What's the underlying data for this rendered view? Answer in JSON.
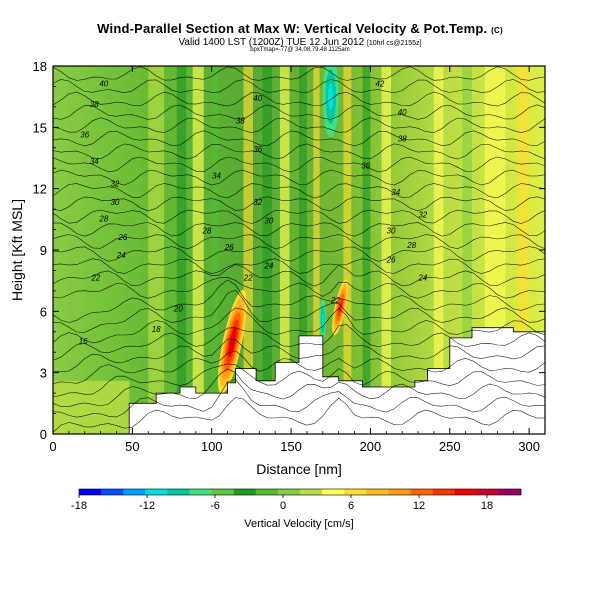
{
  "chart_data": {
    "type": "heatmap",
    "title": "Wind-Parallel Section at Max W: Vertical Velocity & Pot.Temp.",
    "title_mark": "(C)",
    "subtitle": "Valid 1400 LST (1200Z) TUE 12 Jun 2012",
    "subtitle_note": "[10hrl cs@2155z]",
    "subtitle2": "bpxTmap=-77@ 34.08,79.48 1125am",
    "xlabel": "Distance [nm]",
    "ylabel": "Height [Kft MSL]",
    "xlim": [
      0,
      310
    ],
    "ylim": [
      0,
      18
    ],
    "x_ticks": [
      0,
      50,
      100,
      150,
      200,
      250,
      300
    ],
    "y_ticks": [
      0,
      3,
      6,
      9,
      12,
      15,
      18
    ],
    "colorbar": {
      "label": "Vertical Velocity [cm/s]",
      "range": [
        -18,
        21
      ],
      "ticks": [
        -18,
        -12,
        -6,
        0,
        6,
        12,
        18
      ],
      "colors": [
        "#0000ff",
        "#0050ff",
        "#00a0ff",
        "#00e0e0",
        "#00c8a0",
        "#40e080",
        "#60c840",
        "#229922",
        "#55bb33",
        "#88cc44",
        "#bbdd44",
        "#ffff55",
        "#ffdd33",
        "#ffbb22",
        "#ff9911",
        "#ff6600",
        "#ff3300",
        "#ee0000",
        "#cc0033",
        "#990066"
      ]
    },
    "terrain": [
      [
        0,
        0
      ],
      [
        48,
        0
      ],
      [
        48,
        1.5
      ],
      [
        65,
        1.5
      ],
      [
        65,
        2.0
      ],
      [
        80,
        2.0
      ],
      [
        80,
        2.3
      ],
      [
        90,
        2.3
      ],
      [
        90,
        2.0
      ],
      [
        110,
        2.0
      ],
      [
        110,
        2.5
      ],
      [
        115,
        2.5
      ],
      [
        115,
        3.2
      ],
      [
        128,
        3.2
      ],
      [
        128,
        2.6
      ],
      [
        140,
        2.6
      ],
      [
        140,
        3.5
      ],
      [
        155,
        3.5
      ],
      [
        155,
        4.8
      ],
      [
        170,
        4.8
      ],
      [
        170,
        2.8
      ],
      [
        180,
        2.8
      ],
      [
        180,
        2.6
      ],
      [
        195,
        2.6
      ],
      [
        195,
        2.3
      ],
      [
        228,
        2.3
      ],
      [
        228,
        2.6
      ],
      [
        236,
        2.6
      ],
      [
        236,
        3.2
      ],
      [
        250,
        3.2
      ],
      [
        250,
        4.7
      ],
      [
        264,
        4.7
      ],
      [
        264,
        5.2
      ],
      [
        290,
        5.2
      ],
      [
        290,
        5.0
      ],
      [
        310,
        5.0
      ],
      [
        310,
        0
      ]
    ],
    "updrafts": [
      {
        "x": 113,
        "y": 4.5,
        "max_cm_s": 21,
        "width_nm": 6,
        "height_kft": 2.6
      },
      {
        "x": 181,
        "y": 6.2,
        "max_cm_s": 17,
        "width_nm": 3.5,
        "height_kft": 1.4
      }
    ],
    "downdrafts": [
      {
        "x": 175,
        "y": 16.5,
        "min_cm_s": -8,
        "width_nm": 5,
        "height_kft": 2
      },
      {
        "x": 170,
        "y": 5.6,
        "min_cm_s": -6,
        "width_nm": 2,
        "height_kft": 1
      }
    ],
    "contour_labels": [
      {
        "text": "40",
        "x": 32,
        "y": 17.1
      },
      {
        "text": "38",
        "x": 26,
        "y": 16.1
      },
      {
        "text": "36",
        "x": 20,
        "y": 14.6
      },
      {
        "text": "34",
        "x": 26,
        "y": 13.3
      },
      {
        "text": "32",
        "x": 39,
        "y": 12.2
      },
      {
        "text": "30",
        "x": 39,
        "y": 11.3
      },
      {
        "text": "28",
        "x": 32,
        "y": 10.5
      },
      {
        "text": "26",
        "x": 44,
        "y": 9.6
      },
      {
        "text": "24",
        "x": 43,
        "y": 8.7
      },
      {
        "text": "22",
        "x": 27,
        "y": 7.6
      },
      {
        "text": "20",
        "x": 79,
        "y": 6.1
      },
      {
        "text": "18",
        "x": 65,
        "y": 5.1
      },
      {
        "text": "16",
        "x": 19,
        "y": 4.5
      },
      {
        "text": "40",
        "x": 129,
        "y": 16.4
      },
      {
        "text": "38",
        "x": 118,
        "y": 15.3
      },
      {
        "text": "36",
        "x": 129,
        "y": 13.9
      },
      {
        "text": "34",
        "x": 103,
        "y": 12.6
      },
      {
        "text": "32",
        "x": 129,
        "y": 11.3
      },
      {
        "text": "30",
        "x": 136,
        "y": 10.4
      },
      {
        "text": "28",
        "x": 97,
        "y": 9.9
      },
      {
        "text": "26",
        "x": 111,
        "y": 9.1
      },
      {
        "text": "24",
        "x": 136,
        "y": 8.2
      },
      {
        "text": "22",
        "x": 123,
        "y": 7.6
      },
      {
        "text": "42",
        "x": 206,
        "y": 17.1
      },
      {
        "text": "40",
        "x": 220,
        "y": 15.7
      },
      {
        "text": "38",
        "x": 220,
        "y": 14.4
      },
      {
        "text": "36",
        "x": 197,
        "y": 13.1
      },
      {
        "text": "34",
        "x": 216,
        "y": 11.8
      },
      {
        "text": "32",
        "x": 233,
        "y": 10.7
      },
      {
        "text": "30",
        "x": 213,
        "y": 9.9
      },
      {
        "text": "28",
        "x": 226,
        "y": 9.2
      },
      {
        "text": "26",
        "x": 213,
        "y": 8.5
      },
      {
        "text": "24",
        "x": 233,
        "y": 7.6
      },
      {
        "text": "22",
        "x": 178,
        "y": 6.5
      }
    ]
  }
}
